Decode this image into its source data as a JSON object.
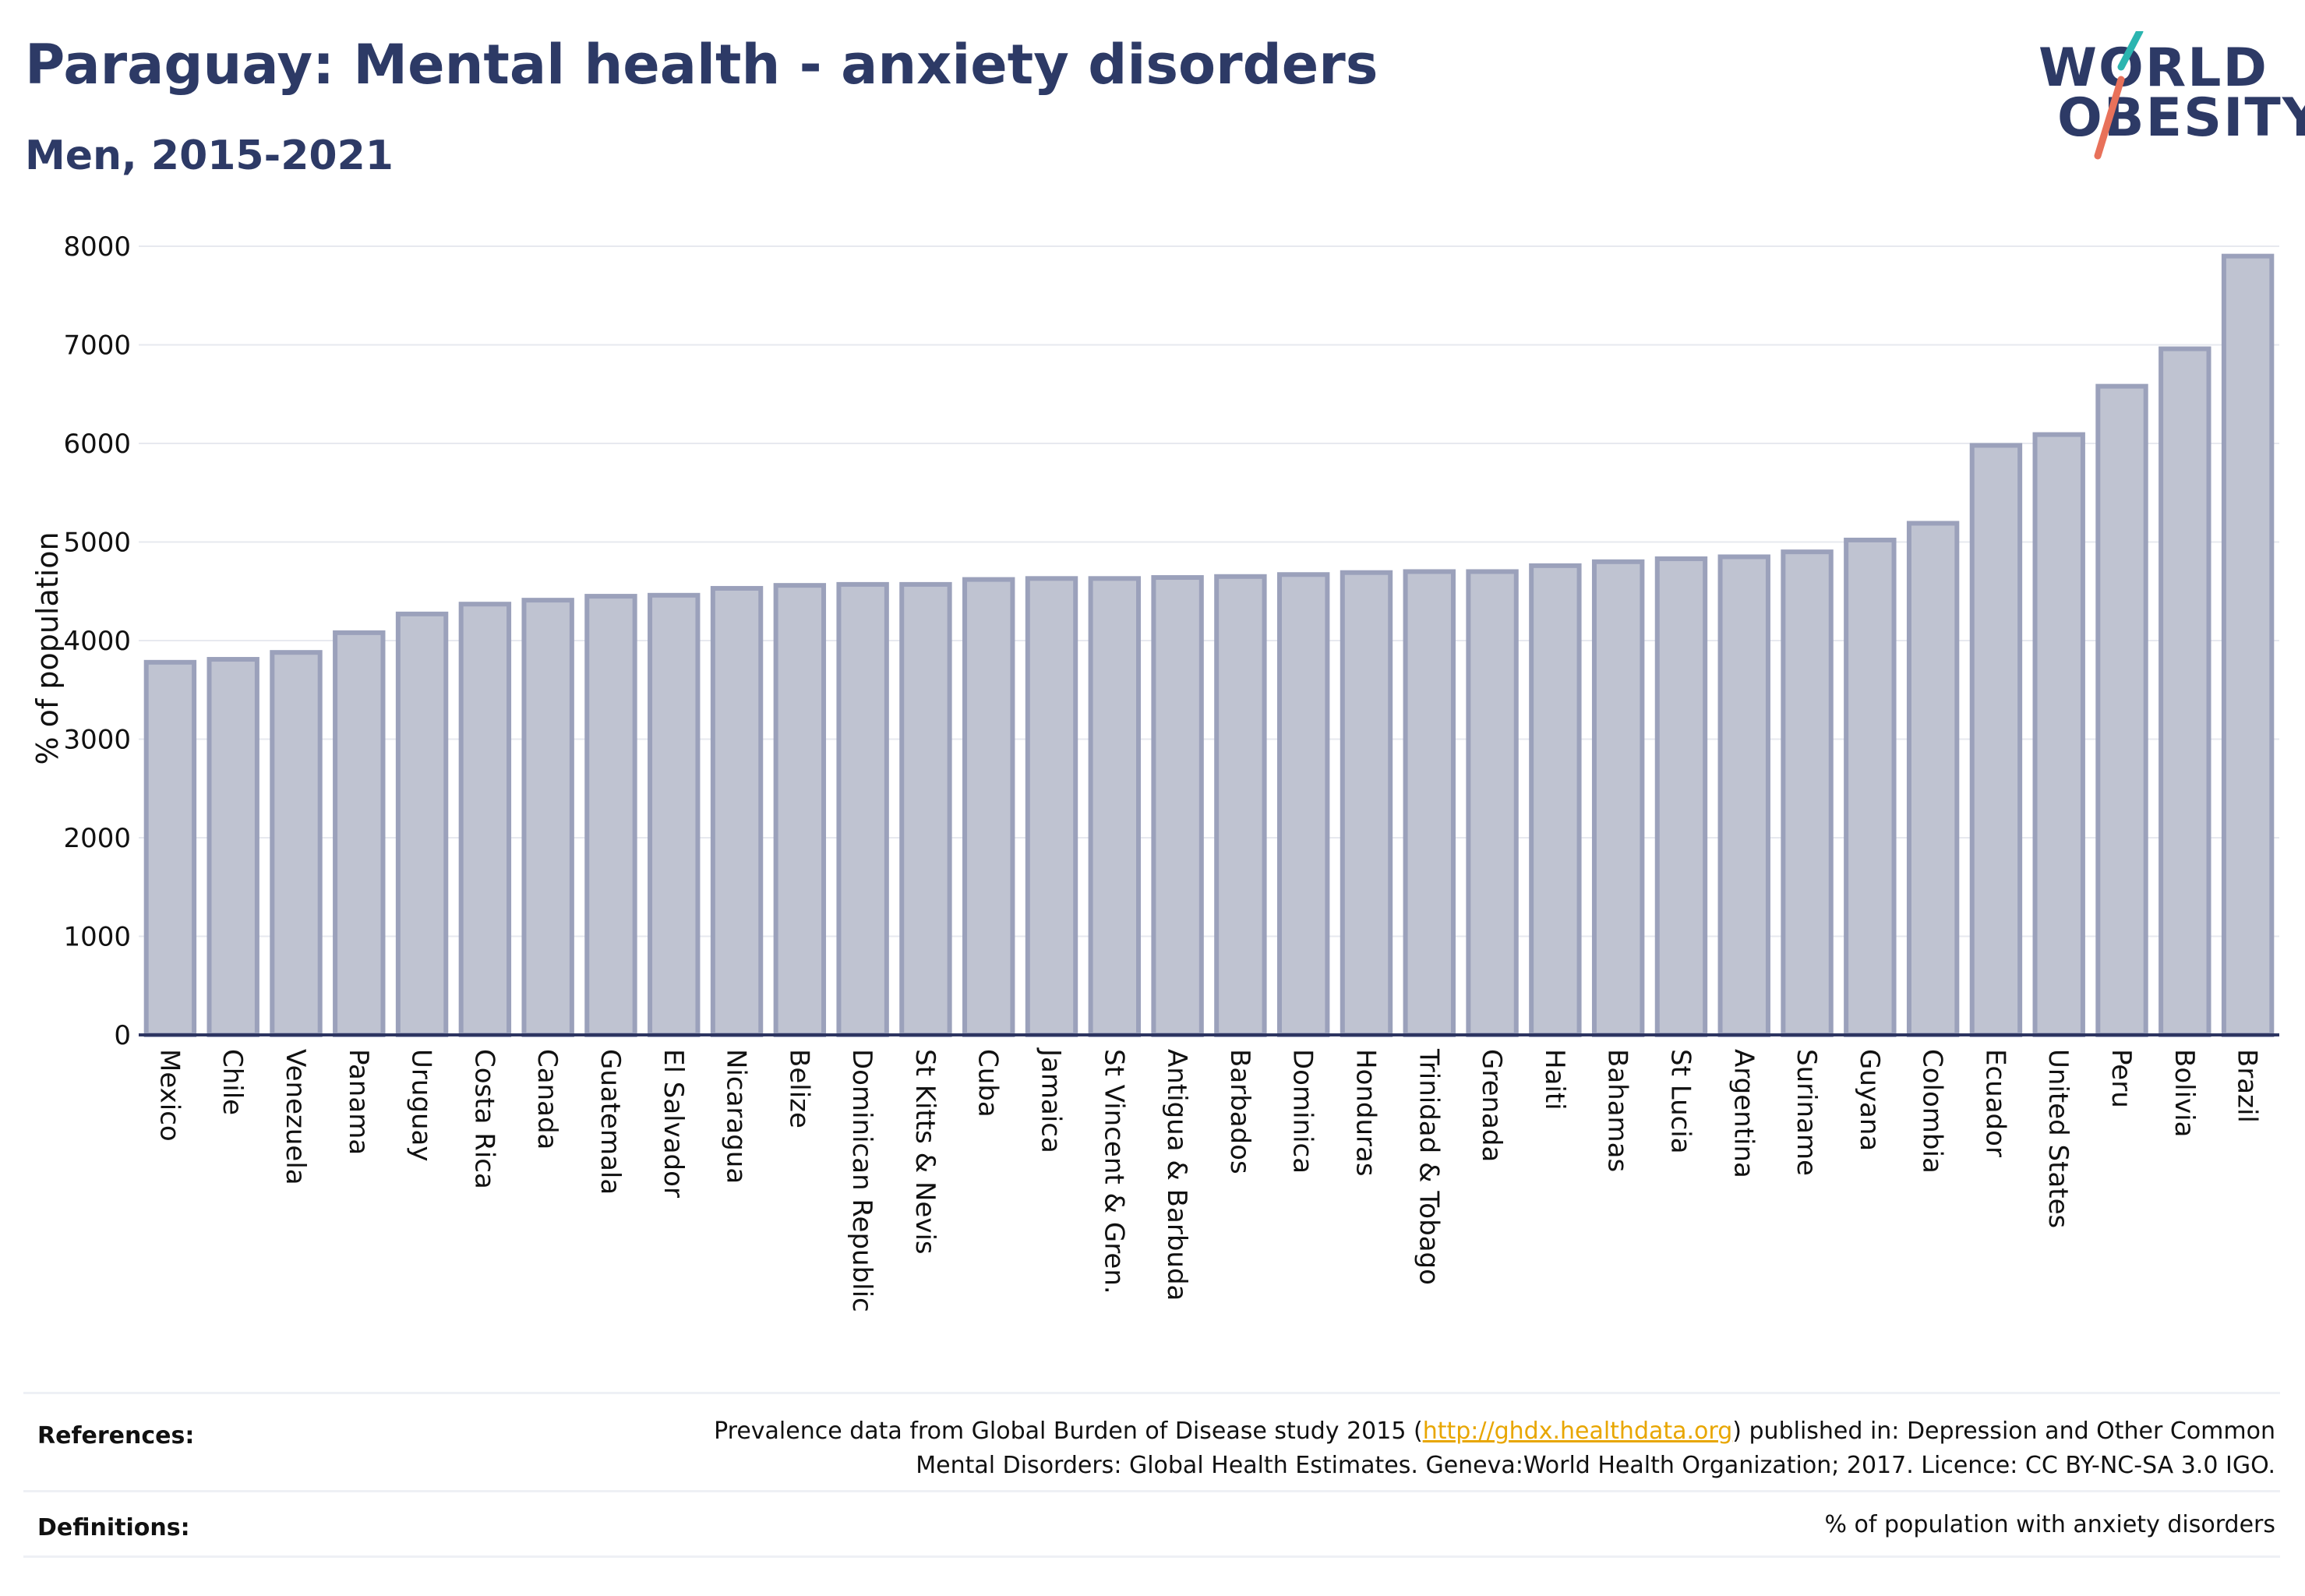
{
  "title": "Paraguay: Mental health - anxiety disorders",
  "subtitle": "Men, 2015-2021",
  "logo": {
    "line1": "WORLD",
    "line2": "OBESITY",
    "accent_teal": "#2bb5b0",
    "accent_coral": "#e8715a"
  },
  "chart_data": {
    "type": "bar",
    "ylabel": "% of population",
    "xlabel": "",
    "ylim": [
      0,
      8000
    ],
    "yticks": [
      0,
      1000,
      2000,
      3000,
      4000,
      5000,
      6000,
      7000,
      8000
    ],
    "grid": true,
    "bar_fill": "#bfc3d1",
    "bar_stroke": "#9ba1bb",
    "categories": [
      "Mexico",
      "Chile",
      "Venezuela",
      "Panama",
      "Uruguay",
      "Costa Rica",
      "Canada",
      "Guatemala",
      "El Salvador",
      "Nicaragua",
      "Belize",
      "Dominican Republic",
      "St Kitts & Nevis",
      "Cuba",
      "Jamaica",
      "St Vincent & Gren.",
      "Antigua & Barbuda",
      "Barbados",
      "Dominica",
      "Honduras",
      "Trinidad & Tobago",
      "Grenada",
      "Haiti",
      "Bahamas",
      "St Lucia",
      "Argentina",
      "Suriname",
      "Guyana",
      "Colombia",
      "Ecuador",
      "United States",
      "Peru",
      "Bolivia",
      "Brazil"
    ],
    "values": [
      3780,
      3810,
      3880,
      4080,
      4270,
      4370,
      4410,
      4450,
      4460,
      4530,
      4560,
      4570,
      4570,
      4620,
      4630,
      4630,
      4640,
      4650,
      4670,
      4690,
      4700,
      4700,
      4760,
      4800,
      4830,
      4850,
      4900,
      5020,
      5190,
      5980,
      6090,
      6580,
      6960,
      7900
    ]
  },
  "footer": {
    "references_label": "References:",
    "references_line1_pre": "Prevalence data from Global Burden of Disease study 2015 (",
    "references_link": "http://ghdx.healthdata.org",
    "references_line1_post": ") published in: Depression and Other Common",
    "references_line2": "Mental Disorders: Global Health Estimates. Geneva:World Health Organization; 2017. Licence: CC BY-NC-SA 3.0 IGO.",
    "definitions_label": "Definitions:",
    "definitions_text": "% of population with anxiety disorders"
  }
}
